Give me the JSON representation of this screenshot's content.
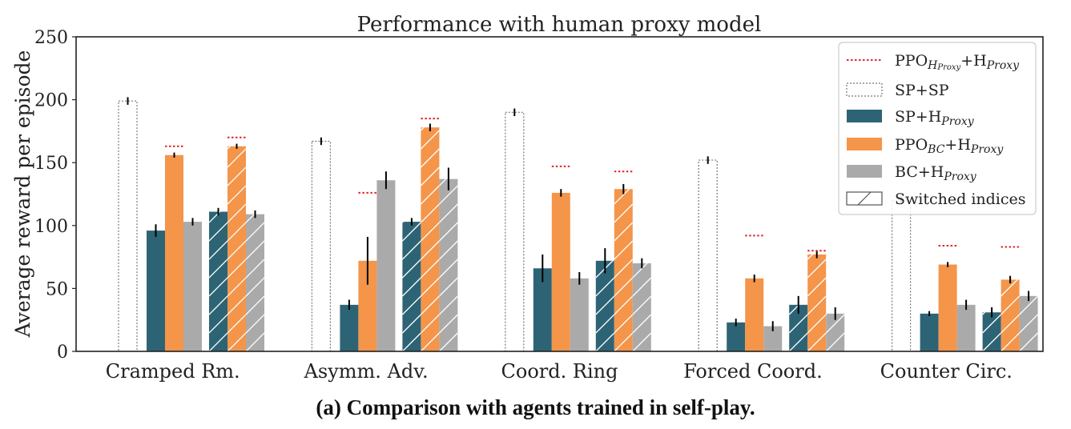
{
  "colors": {
    "sp_hproxy": "#2d6475",
    "ppo_bc_hproxy": "#f4954a",
    "bc_hproxy": "#aaaaaa",
    "ppo_h_proxy_line": "#e0262b",
    "outline": "#777777",
    "axis": "#222222"
  },
  "chart_data": {
    "type": "bar",
    "title": "Performance with human proxy model",
    "xlabel": "",
    "ylabel": "Average reward per episode",
    "ylim": [
      0,
      250
    ],
    "yticks": [
      "0",
      "50",
      "100",
      "150",
      "200",
      "250"
    ],
    "grid": false,
    "legend_position": "top-right",
    "categories": [
      "Cramped Rm.",
      "Asymm. Adv.",
      "Coord. Ring",
      "Forced Coord.",
      "Counter Circ."
    ],
    "legend": [
      {
        "key": "ppo_h",
        "main": "PPO",
        "sub": "H",
        "sub2": "Proxy",
        "tail": "+H",
        "tail_sub": "Proxy"
      },
      {
        "key": "spsp",
        "main": "SP+SP"
      },
      {
        "key": "sp_hproxy",
        "main": "SP+H",
        "sub": "Proxy"
      },
      {
        "key": "ppo_bc",
        "main": "PPO",
        "sub": "BC",
        "tail": "+H",
        "tail_sub": "Proxy"
      },
      {
        "key": "bc_hproxy",
        "main": "BC+H",
        "sub": "Proxy"
      },
      {
        "key": "switched",
        "main": "Switched indices"
      }
    ],
    "sp_sp": {
      "values": [
        199,
        167,
        190,
        152,
        120
      ],
      "errors": [
        3,
        3,
        3,
        3,
        3
      ]
    },
    "ppo_h_proxy": {
      "original": [
        163,
        126,
        147,
        92,
        84
      ],
      "switched": [
        170,
        185,
        143,
        80,
        83
      ]
    },
    "series": [
      {
        "name": "SP+H_Proxy",
        "key": "sp_hproxy",
        "original": [
          96,
          37,
          66,
          23,
          30
        ],
        "switched": [
          111,
          103,
          72,
          37,
          31
        ],
        "err_original": [
          5,
          4,
          11,
          3,
          2
        ],
        "err_switched": [
          3,
          3,
          10,
          7,
          4
        ]
      },
      {
        "name": "PPO_BC+H_Proxy",
        "key": "ppo_bc_hproxy",
        "original": [
          156,
          72,
          126,
          58,
          69
        ],
        "switched": [
          163,
          178,
          129,
          77,
          57
        ],
        "err_original": [
          2,
          19,
          3,
          3,
          2
        ],
        "err_switched": [
          2,
          3,
          4,
          3,
          3
        ]
      },
      {
        "name": "BC+H_Proxy",
        "key": "bc_hproxy",
        "original": [
          103,
          136,
          58,
          20,
          37
        ],
        "switched": [
          109,
          137,
          70,
          30,
          44
        ],
        "err_original": [
          3,
          7,
          5,
          4,
          4
        ],
        "err_switched": [
          3,
          9,
          4,
          5,
          4
        ]
      }
    ]
  },
  "caption": "(a) Comparison with agents trained in self-play."
}
